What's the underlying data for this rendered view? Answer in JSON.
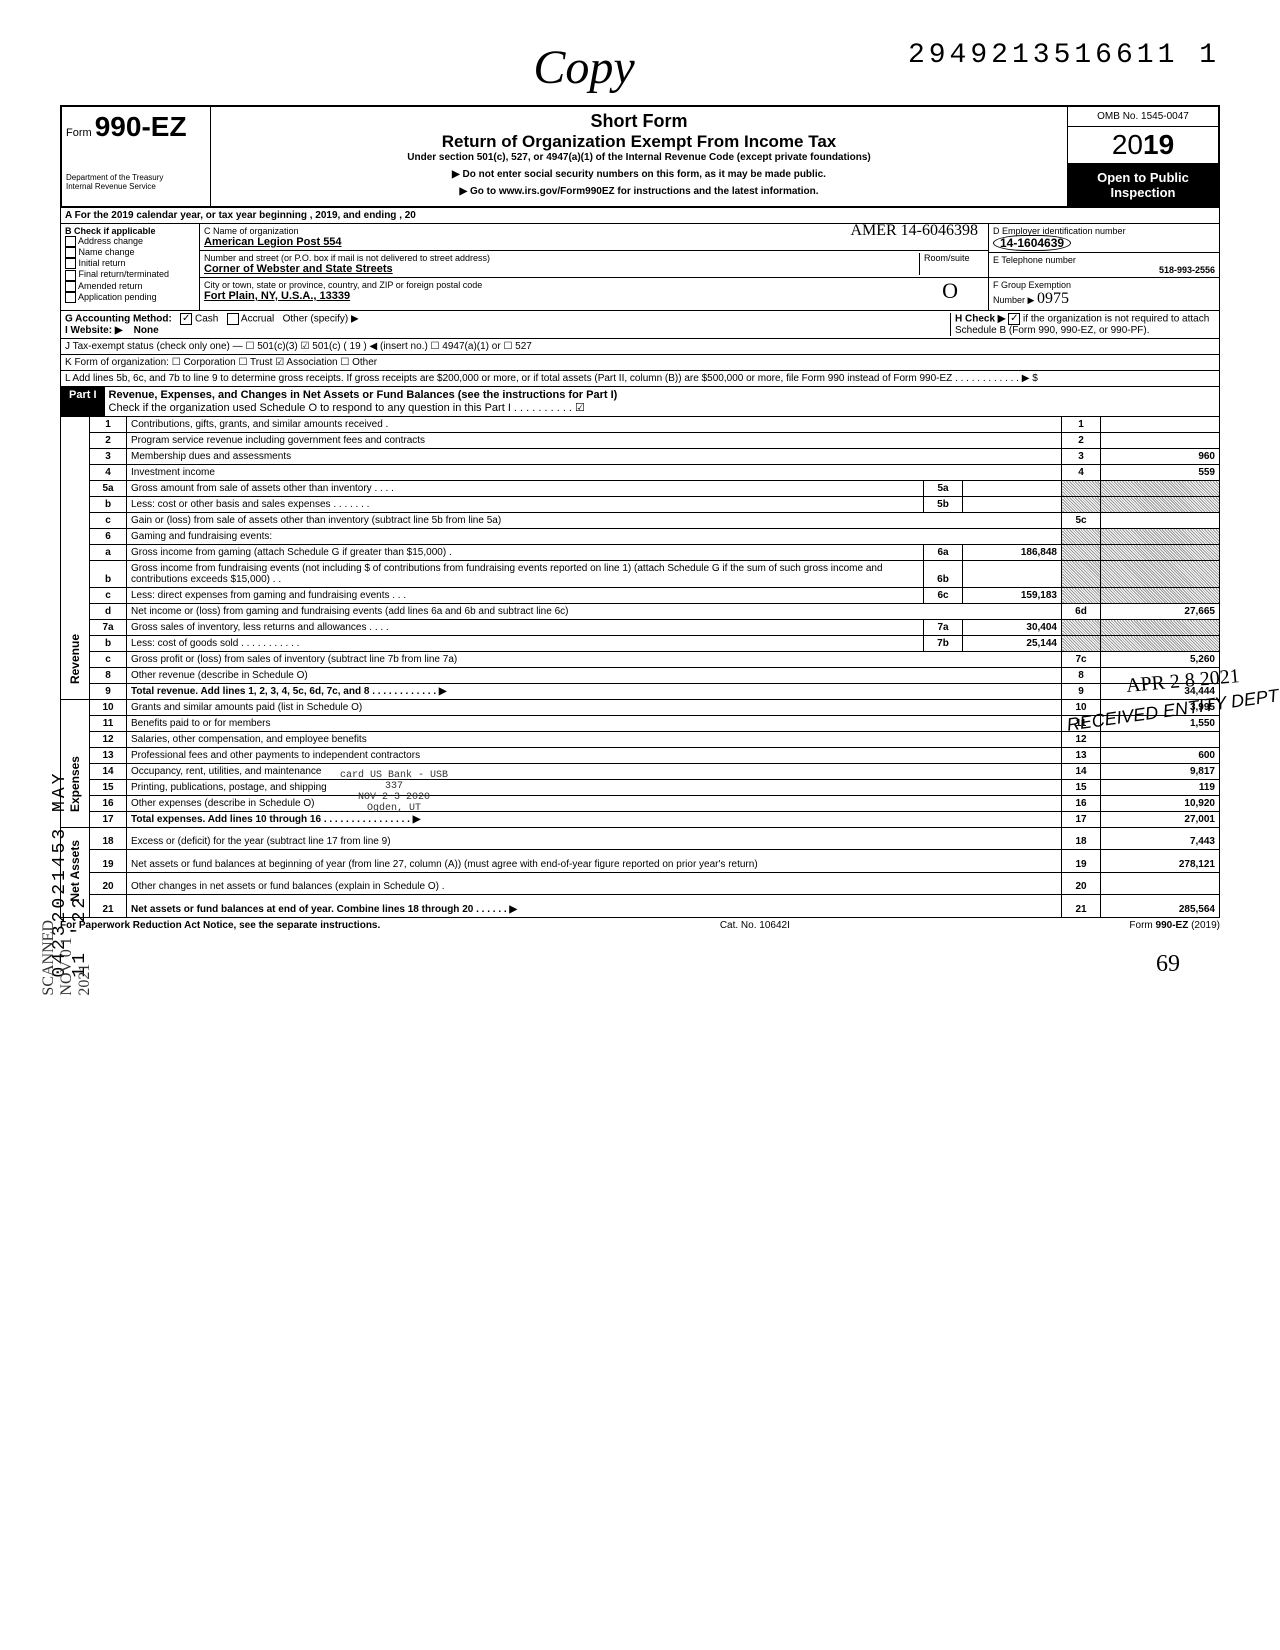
{
  "header": {
    "copy_label": "Copy",
    "dln": "2949213516611  1",
    "form_no_prefix": "Form",
    "form_no": "990-EZ",
    "short_form": "Short Form",
    "title": "Return of Organization Exempt From Income Tax",
    "subtitle": "Under section 501(c), 527, or 4947(a)(1) of the Internal Revenue Code (except private foundations)",
    "ssn_warning": "▶ Do not enter social security numbers on this form, as it may be made public.",
    "goto": "▶ Go to www.irs.gov/Form990EZ for instructions and the latest information.",
    "dept": "Department of the Treasury\nInternal Revenue Service",
    "omb": "OMB No. 1545-0047",
    "year_prefix": "20",
    "year_bold": "19",
    "open": "Open to Public",
    "inspection": "Inspection"
  },
  "rowA": "A  For the 2019 calendar year, or tax year beginning                                                          , 2019, and ending                                        , 20",
  "colB": {
    "header": "B  Check if applicable",
    "items": [
      "Address change",
      "Name change",
      "Initial return",
      "Final return/terminated",
      "Amended return",
      "Application pending"
    ]
  },
  "colC": {
    "c_label": "C  Name of organization",
    "c_hand": "AMER      14-6046398",
    "c_val": "American Legion Post 554",
    "addr_label": "Number and street (or P.O. box if mail is not delivered to street address)",
    "room": "Room/suite",
    "addr_val": "Corner of Webster and State Streets",
    "city_label": "City or town, state or province, country, and ZIP or foreign postal code",
    "city_val": "Fort Plain, NY, U.S.A., 13339"
  },
  "colDE": {
    "d_label": "D Employer identification number",
    "d_val": "14-1604639",
    "e_label": "E Telephone number",
    "e_val": "518-993-2556",
    "f_label": "F Group Exemption\nNumber ▶",
    "f_hand": "0975"
  },
  "rowG": {
    "g": "G  Accounting Method:",
    "cash": "Cash",
    "accrual": "Accrual",
    "other": "Other (specify) ▶",
    "i": "I   Website: ▶",
    "none": "None",
    "h": "H  Check ▶",
    "h_text": "if the organization is not required to attach Schedule B (Form 990, 990-EZ, or 990-PF)."
  },
  "rowJ": "J  Tax-exempt status (check only one) —  ☐ 501(c)(3)     ☑ 501(c) (  19  ) ◀ (insert no.)  ☐ 4947(a)(1) or    ☐ 527",
  "rowK": "K  Form of organization:    ☐ Corporation       ☐ Trust              ☑ Association        ☐ Other",
  "rowL": "L  Add lines 5b, 6c, and 7b to line 9 to determine gross receipts. If gross receipts are $200,000 or more, or if total assets (Part II, column (B)) are $500,000 or more, file Form 990 instead of Form 990-EZ .   .   .   .   .   .   .   .   .   .   .   .   ▶   $",
  "part1": {
    "label": "Part I",
    "title": "Revenue, Expenses, and Changes in Net Assets or Fund Balances (see the instructions for Part I)",
    "check": "Check if the organization used Schedule O to respond to any question in this Part I  .   .   .   .   .   .   .   .   .   .   ☑"
  },
  "sections": {
    "revenue": "Revenue",
    "expenses": "Expenses",
    "netassets": "Net Assets"
  },
  "lines": [
    {
      "n": "1",
      "d": "Contributions, gifts, grants, and similar amounts received .",
      "r": "1",
      "a": ""
    },
    {
      "n": "2",
      "d": "Program service revenue including government fees and contracts",
      "r": "2",
      "a": ""
    },
    {
      "n": "3",
      "d": "Membership dues and assessments",
      "r": "3",
      "a": "960"
    },
    {
      "n": "4",
      "d": "Investment income",
      "r": "4",
      "a": "559"
    },
    {
      "n": "5a",
      "d": "Gross amount from sale of assets other than inventory .   .   .   .",
      "mn": "5a",
      "ma": ""
    },
    {
      "n": "b",
      "d": "Less: cost or other basis and sales expenses .   .   .   .   .   .   .",
      "mn": "5b",
      "ma": ""
    },
    {
      "n": "c",
      "d": "Gain or (loss) from sale of assets other than inventory (subtract line 5b from line 5a)",
      "r": "5c",
      "a": ""
    },
    {
      "n": "6",
      "d": "Gaming and fundraising events:"
    },
    {
      "n": "a",
      "d": "Gross income from gaming (attach Schedule G if greater than $15,000) .",
      "mn": "6a",
      "ma": "186,848"
    },
    {
      "n": "b",
      "d": "Gross income from fundraising events (not including  $                    of contributions from fundraising events reported on line 1) (attach Schedule G if the sum of such gross income and contributions exceeds $15,000) .   .",
      "mn": "6b",
      "ma": ""
    },
    {
      "n": "c",
      "d": "Less: direct expenses from gaming and fundraising events    .   .   .",
      "mn": "6c",
      "ma": "159,183"
    },
    {
      "n": "d",
      "d": "Net income or (loss) from gaming and fundraising events (add lines 6a and 6b and subtract line 6c)",
      "r": "6d",
      "a": "27,665"
    },
    {
      "n": "7a",
      "d": "Gross sales of inventory, less returns and allowances .   .   .   .",
      "mn": "7a",
      "ma": "30,404"
    },
    {
      "n": "b",
      "d": "Less: cost of goods sold     .   .   .   .   .   .   .   .   .   .   .",
      "mn": "7b",
      "ma": "25,144"
    },
    {
      "n": "c",
      "d": "Gross profit or (loss) from sales of inventory (subtract line 7b from line 7a)",
      "r": "7c",
      "a": "5,260"
    },
    {
      "n": "8",
      "d": "Other revenue (describe in Schedule O)",
      "r": "8",
      "a": ""
    },
    {
      "n": "9",
      "d": "Total revenue. Add lines 1, 2, 3, 4, 5c, 6d, 7c, and 8   .   .   .   .   .   .   .   .   .   .   .   .   ▶",
      "r": "9",
      "a": "34,444",
      "bold": true
    },
    {
      "n": "10",
      "d": "Grants and similar amounts paid (list in Schedule O)",
      "r": "10",
      "a": "3,995"
    },
    {
      "n": "11",
      "d": "Benefits paid to or for members",
      "r": "11",
      "a": "1,550"
    },
    {
      "n": "12",
      "d": "Salaries, other compensation, and employee benefits",
      "r": "12",
      "a": ""
    },
    {
      "n": "13",
      "d": "Professional fees and other payments to independent contractors",
      "r": "13",
      "a": "600"
    },
    {
      "n": "14",
      "d": "Occupancy, rent, utilities, and maintenance",
      "r": "14",
      "a": "9,817"
    },
    {
      "n": "15",
      "d": "Printing, publications, postage, and shipping",
      "r": "15",
      "a": "119"
    },
    {
      "n": "16",
      "d": "Other expenses (describe in Schedule O)",
      "r": "16",
      "a": "10,920"
    },
    {
      "n": "17",
      "d": "Total expenses. Add lines 10 through 16  .   .   .   .   .   .   .   .   .   .   .   .   .   .   .   .   ▶",
      "r": "17",
      "a": "27,001",
      "bold": true
    },
    {
      "n": "18",
      "d": "Excess or (deficit) for the year (subtract line 17 from line 9)",
      "r": "18",
      "a": "7,443"
    },
    {
      "n": "19",
      "d": "Net assets or fund balances at beginning of year (from line 27, column (A)) (must agree with end-of-year figure reported on prior year's return)",
      "r": "19",
      "a": "278,121"
    },
    {
      "n": "20",
      "d": "Other changes in net assets or fund balances (explain in Schedule O) .",
      "r": "20",
      "a": ""
    },
    {
      "n": "21",
      "d": "Net assets or fund balances at end of year. Combine lines 18 through 20   .   .   .   .   .   .   ▶",
      "r": "21",
      "a": "285,564",
      "bold": true
    }
  ],
  "stamps": {
    "bank": "card US Bank - USB\n337\nNOV 2 3 2020\nOgden, UT",
    "apr": "APR 2 8 2021",
    "received": "RECEIVED ENTITY DEPT",
    "side": "04232021453 MAY 11 '22",
    "scanned": "SCANNED NOV 0 1 2021",
    "circle": "O"
  },
  "footer": {
    "left": "For Paperwork Reduction Act Notice, see the separate instructions.",
    "mid": "Cat. No. 10642I",
    "right": "Form 990-EZ (2019)",
    "page": "69"
  }
}
